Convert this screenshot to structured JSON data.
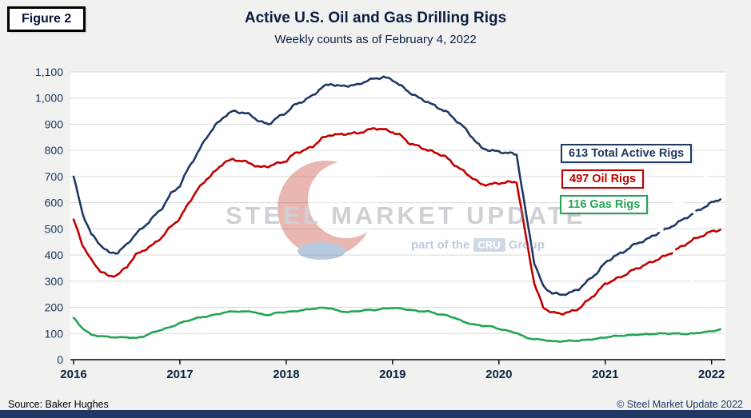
{
  "figure_label": "Figure 2",
  "watermark": {
    "brand": "STEEL MARKET UPDATE",
    "part_of": "part of the",
    "cru": "CRU",
    "group": "Group"
  },
  "footer": {
    "source": "Source: Baker Hughes",
    "copyright": "© Steel Market Update 2022"
  },
  "colors": {
    "total": "#1f3864",
    "oil": "#c00000",
    "gas": "#23a455",
    "grid": "#d9d9d9",
    "axis": "#000000",
    "tick_label": "#17365d",
    "bottom_bar": "#1f3864",
    "background": "#f1f1ef",
    "plot_background": "#ffffff"
  },
  "callouts": [
    {
      "label": "613 Total Active Rigs",
      "value": 613,
      "color": "#1f3864"
    },
    {
      "label": "497 Oil Rigs",
      "value": 497,
      "color": "#c00000"
    },
    {
      "label": "116 Gas Rigs",
      "value": 116,
      "color": "#23a455"
    }
  ],
  "chart_data": {
    "type": "line",
    "title": "Active U.S. Oil and Gas Drilling Rigs",
    "subtitle": "Weekly counts as of February 4, 2022",
    "xlabel": "",
    "ylabel": "",
    "grid": "horizontal",
    "legend_position": "callout-right",
    "xlim": [
      2015.97,
      2022.13
    ],
    "ylim": [
      0,
      1100
    ],
    "y_tick_step": 100,
    "x_ticks": [
      2016,
      2017,
      2018,
      2019,
      2020,
      2021,
      2022
    ],
    "x_start": 2016.0,
    "x_step_years": 0.0833333,
    "x_resolution_note": "monthly estimates of weekly rig counts, Jan 2016 - Feb 2022",
    "series": [
      {
        "name": "Total Active Rigs",
        "color": "#1f3864",
        "latest": 613,
        "values": [
          700,
          560,
          480,
          440,
          408,
          410,
          440,
          480,
          510,
          545,
          580,
          635,
          665,
          735,
          790,
          850,
          895,
          930,
          950,
          945,
          935,
          910,
          900,
          925,
          945,
          975,
          990,
          1010,
          1040,
          1055,
          1045,
          1048,
          1050,
          1065,
          1075,
          1080,
          1070,
          1045,
          1020,
          1000,
          985,
          965,
          950,
          920,
          890,
          850,
          810,
          800,
          795,
          790,
          785,
          570,
          370,
          280,
          255,
          248,
          255,
          270,
          300,
          330,
          370,
          395,
          410,
          435,
          450,
          465,
          485,
          500,
          520,
          540,
          560,
          580,
          600,
          613
        ]
      },
      {
        "name": "Oil Rigs",
        "color": "#c00000",
        "latest": 497,
        "values": [
          536,
          440,
          380,
          340,
          318,
          325,
          355,
          400,
          420,
          440,
          470,
          510,
          540,
          600,
          650,
          690,
          720,
          755,
          765,
          760,
          750,
          735,
          740,
          750,
          760,
          790,
          800,
          815,
          845,
          860,
          860,
          865,
          865,
          875,
          885,
          880,
          870,
          855,
          825,
          815,
          800,
          790,
          775,
          745,
          720,
          695,
          670,
          670,
          675,
          678,
          680,
          480,
          290,
          200,
          180,
          176,
          182,
          195,
          225,
          255,
          290,
          305,
          320,
          340,
          355,
          370,
          385,
          400,
          420,
          440,
          460,
          475,
          490,
          497
        ]
      },
      {
        "name": "Gas Rigs",
        "color": "#23a455",
        "latest": 116,
        "values": [
          160,
          120,
          95,
          90,
          87,
          85,
          86,
          82,
          90,
          105,
          115,
          125,
          140,
          150,
          160,
          165,
          172,
          180,
          185,
          183,
          185,
          175,
          170,
          180,
          182,
          185,
          190,
          195,
          198,
          197,
          185,
          182,
          185,
          190,
          190,
          195,
          198,
          195,
          190,
          185,
          185,
          175,
          170,
          160,
          145,
          135,
          130,
          128,
          118,
          110,
          102,
          85,
          78,
          76,
          70,
          70,
          72,
          73,
          76,
          80,
          85,
          90,
          92,
          94,
          97,
          97,
          100,
          100,
          100,
          98,
          100,
          105,
          108,
          116
        ]
      }
    ]
  }
}
